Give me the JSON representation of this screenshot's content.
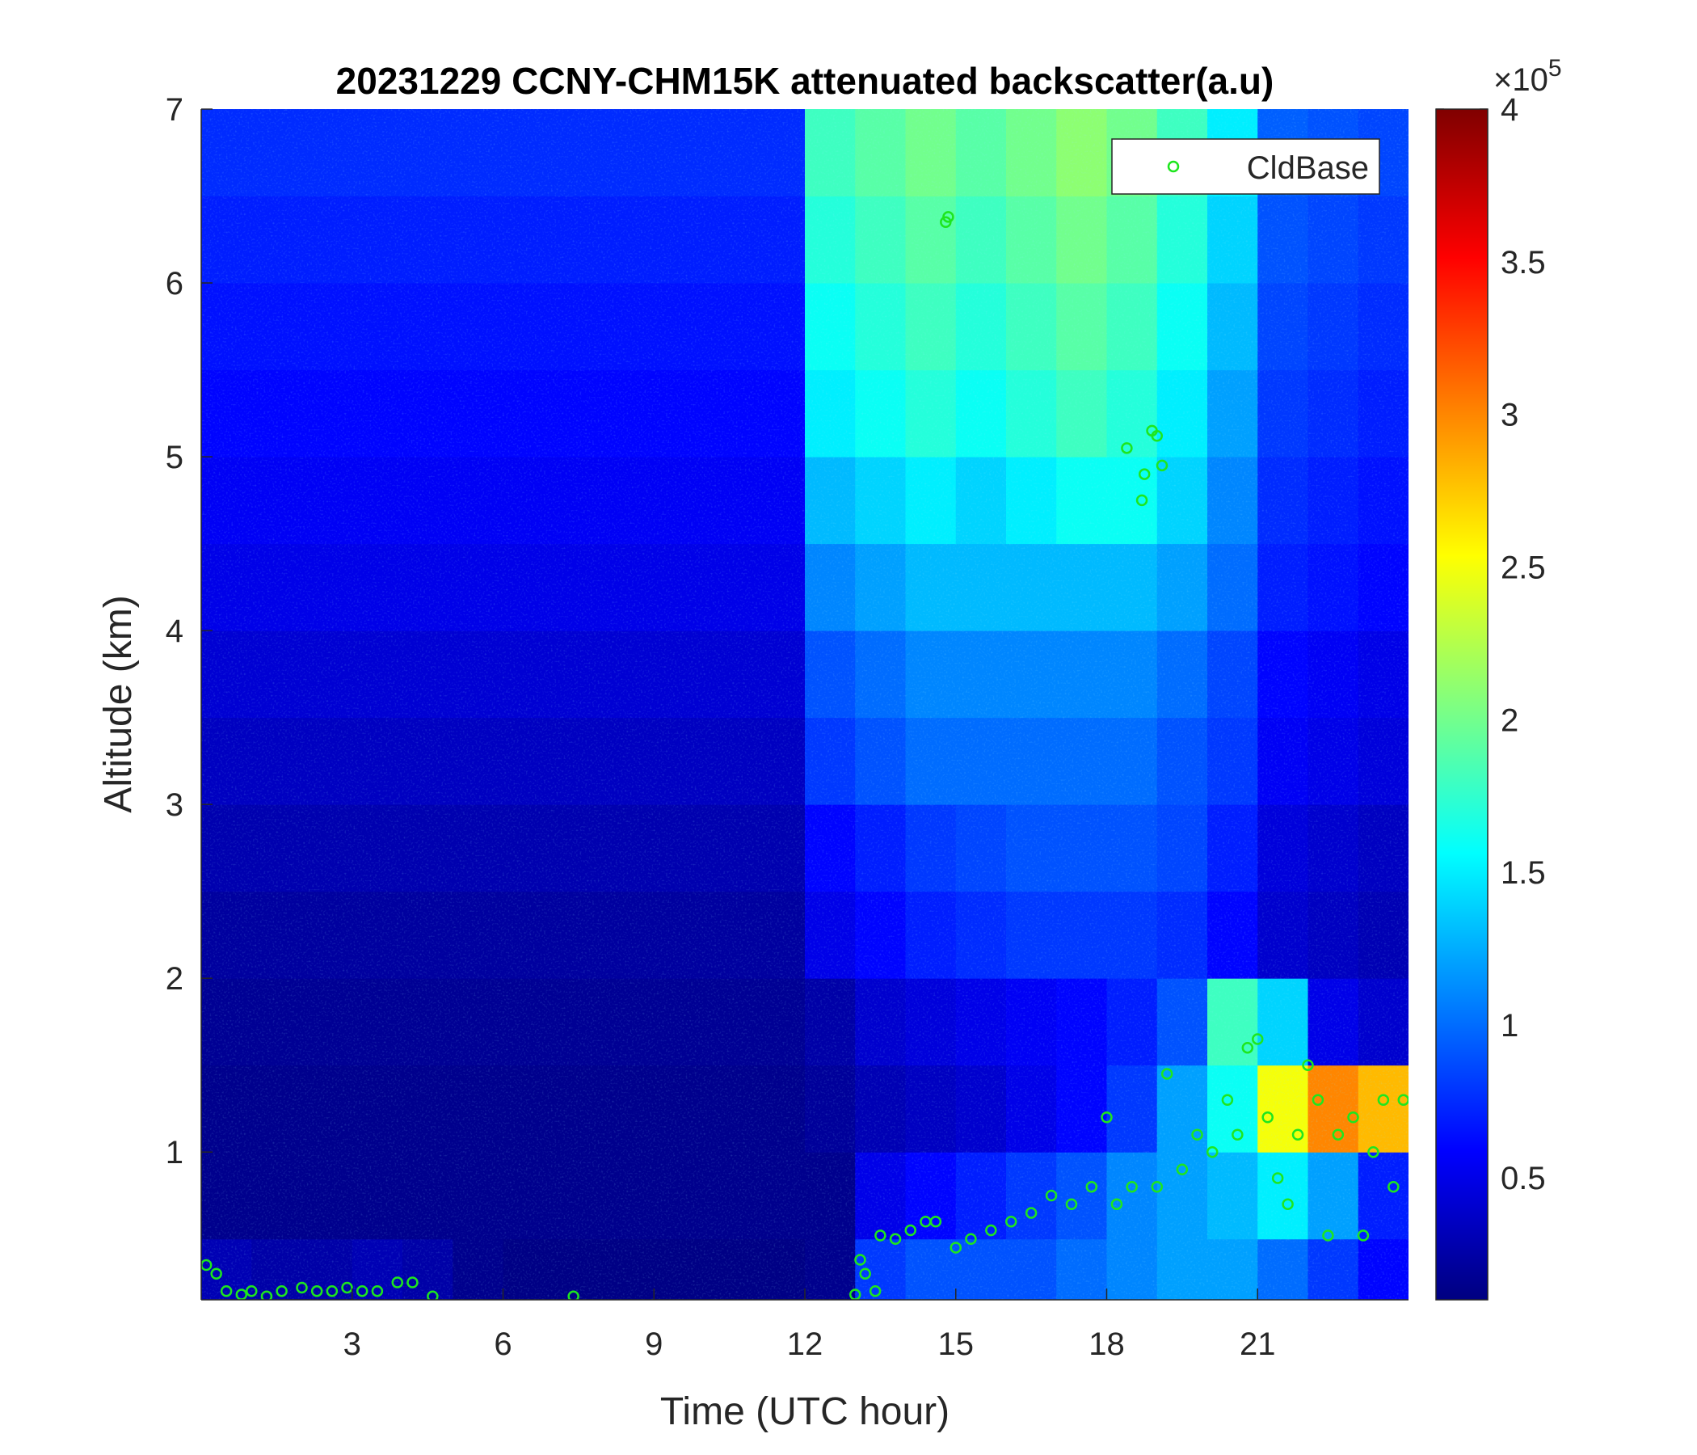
{
  "chart_data": {
    "type": "heatmap",
    "title": "20231229 CCNY-CHM15K attenuated backscatter(a.u)",
    "xlabel": "Time (UTC hour)",
    "ylabel": "Altitude (km)",
    "xlim": [
      0,
      24
    ],
    "ylim": [
      0.15,
      7
    ],
    "xticks": [
      3,
      6,
      9,
      12,
      15,
      18,
      21
    ],
    "yticks": [
      1,
      2,
      3,
      4,
      5,
      6,
      7
    ],
    "colormap": "jet",
    "clim": [
      0.1,
      4
    ],
    "cticks": [
      0.5,
      1,
      1.5,
      2,
      2.5,
      3,
      3.5,
      4
    ],
    "cbar_base": "×10",
    "cbar_exponent": "5",
    "xbins": [
      0,
      1,
      2,
      3,
      4,
      5,
      6,
      7,
      8,
      9,
      10,
      11,
      12,
      13,
      14,
      15,
      16,
      17,
      18,
      19,
      20,
      21,
      22,
      23,
      24
    ],
    "ybins": [
      0.15,
      0.5,
      1,
      1.5,
      2,
      2.5,
      3,
      3.5,
      4,
      4.5,
      5,
      5.5,
      6,
      6.5,
      7
    ],
    "z": [
      [
        0.3,
        0.25,
        0.25,
        0.3,
        0.25,
        0.15,
        0.12,
        0.12,
        0.12,
        0.12,
        0.12,
        0.12,
        0.15,
        0.8,
        0.9,
        0.9,
        0.9,
        1.0,
        1.1,
        1.2,
        1.2,
        1.0,
        0.8,
        0.6
      ],
      [
        0.15,
        0.15,
        0.15,
        0.15,
        0.15,
        0.15,
        0.15,
        0.15,
        0.15,
        0.15,
        0.15,
        0.15,
        0.15,
        0.5,
        0.6,
        0.7,
        0.8,
        0.9,
        1.1,
        1.2,
        1.3,
        1.5,
        1.2,
        0.7
      ],
      [
        0.15,
        0.15,
        0.15,
        0.15,
        0.15,
        0.15,
        0.15,
        0.15,
        0.15,
        0.15,
        0.15,
        0.15,
        0.2,
        0.3,
        0.35,
        0.4,
        0.5,
        0.6,
        0.8,
        1.2,
        1.6,
        2.5,
        3.0,
        2.8
      ],
      [
        0.18,
        0.18,
        0.18,
        0.18,
        0.18,
        0.18,
        0.18,
        0.18,
        0.18,
        0.18,
        0.18,
        0.18,
        0.25,
        0.4,
        0.45,
        0.5,
        0.55,
        0.6,
        0.7,
        0.9,
        1.8,
        1.4,
        0.5,
        0.4
      ],
      [
        0.22,
        0.22,
        0.22,
        0.22,
        0.22,
        0.22,
        0.22,
        0.22,
        0.22,
        0.22,
        0.22,
        0.22,
        0.5,
        0.6,
        0.7,
        0.75,
        0.8,
        0.8,
        0.8,
        0.75,
        0.6,
        0.4,
        0.35,
        0.3
      ],
      [
        0.28,
        0.28,
        0.28,
        0.28,
        0.28,
        0.28,
        0.28,
        0.28,
        0.28,
        0.28,
        0.28,
        0.28,
        0.6,
        0.7,
        0.8,
        0.85,
        0.9,
        0.9,
        0.9,
        0.85,
        0.7,
        0.45,
        0.4,
        0.35
      ],
      [
        0.35,
        0.35,
        0.35,
        0.35,
        0.35,
        0.35,
        0.35,
        0.35,
        0.35,
        0.35,
        0.35,
        0.35,
        0.8,
        0.9,
        1.0,
        1.0,
        1.0,
        1.0,
        1.0,
        0.9,
        0.8,
        0.55,
        0.5,
        0.45
      ],
      [
        0.42,
        0.42,
        0.42,
        0.42,
        0.42,
        0.42,
        0.42,
        0.42,
        0.42,
        0.42,
        0.42,
        0.42,
        0.9,
        1.0,
        1.1,
        1.1,
        1.1,
        1.1,
        1.1,
        1.0,
        0.85,
        0.6,
        0.55,
        0.5
      ],
      [
        0.5,
        0.5,
        0.5,
        0.5,
        0.5,
        0.5,
        0.5,
        0.5,
        0.5,
        0.5,
        0.5,
        0.5,
        1.1,
        1.2,
        1.3,
        1.3,
        1.3,
        1.3,
        1.3,
        1.2,
        1.0,
        0.7,
        0.65,
        0.6
      ],
      [
        0.55,
        0.55,
        0.55,
        0.55,
        0.55,
        0.55,
        0.55,
        0.55,
        0.55,
        0.55,
        0.55,
        0.55,
        1.3,
        1.4,
        1.5,
        1.4,
        1.5,
        1.6,
        1.6,
        1.4,
        1.1,
        0.75,
        0.7,
        0.65
      ],
      [
        0.6,
        0.6,
        0.6,
        0.6,
        0.6,
        0.6,
        0.6,
        0.6,
        0.6,
        0.6,
        0.6,
        0.6,
        1.5,
        1.6,
        1.7,
        1.6,
        1.7,
        1.8,
        1.7,
        1.5,
        1.2,
        0.8,
        0.75,
        0.7
      ],
      [
        0.65,
        0.65,
        0.65,
        0.65,
        0.65,
        0.65,
        0.65,
        0.65,
        0.65,
        0.65,
        0.65,
        0.65,
        1.6,
        1.7,
        1.8,
        1.7,
        1.8,
        1.9,
        1.8,
        1.6,
        1.3,
        0.85,
        0.8,
        0.75
      ],
      [
        0.7,
        0.7,
        0.7,
        0.7,
        0.7,
        0.7,
        0.7,
        0.7,
        0.7,
        0.7,
        0.7,
        0.7,
        1.7,
        1.8,
        1.9,
        1.8,
        1.9,
        2.0,
        1.9,
        1.7,
        1.4,
        0.9,
        0.85,
        0.8
      ],
      [
        0.75,
        0.75,
        0.75,
        0.75,
        0.75,
        0.75,
        0.75,
        0.75,
        0.75,
        0.75,
        0.75,
        0.75,
        1.8,
        1.9,
        2.0,
        1.9,
        2.0,
        2.1,
        2.0,
        1.8,
        1.5,
        0.95,
        0.9,
        0.85
      ]
    ],
    "series": [
      {
        "name": "CldBase",
        "color": "#1ee61e",
        "x": [
          0.1,
          0.3,
          0.5,
          0.8,
          1.0,
          1.3,
          1.6,
          2.0,
          2.3,
          2.6,
          2.9,
          3.2,
          3.5,
          3.9,
          4.2,
          4.6,
          7.4,
          13.0,
          13.1,
          13.2,
          13.4,
          13.5,
          13.8,
          14.1,
          14.4,
          14.6,
          14.8,
          14.85,
          15.0,
          15.3,
          15.7,
          16.1,
          16.5,
          16.9,
          17.3,
          17.7,
          18.0,
          18.2,
          18.5,
          18.4,
          18.7,
          18.75,
          18.9,
          19.0,
          19.1,
          19.0,
          19.2,
          19.5,
          19.8,
          20.1,
          20.4,
          20.6,
          20.8,
          21.0,
          21.2,
          21.4,
          21.6,
          21.8,
          22.0,
          22.2,
          22.4,
          22.6,
          22.9,
          23.1,
          23.3,
          23.5,
          23.7,
          23.9
        ],
        "values": [
          0.35,
          0.3,
          0.2,
          0.18,
          0.2,
          0.17,
          0.2,
          0.22,
          0.2,
          0.2,
          0.22,
          0.2,
          0.2,
          0.25,
          0.25,
          0.17,
          0.17,
          0.18,
          0.38,
          0.3,
          0.2,
          0.52,
          0.5,
          0.55,
          0.6,
          0.6,
          6.35,
          6.38,
          0.45,
          0.5,
          0.55,
          0.6,
          0.65,
          0.75,
          0.7,
          0.8,
          1.2,
          0.7,
          0.8,
          5.05,
          4.75,
          4.9,
          5.15,
          5.12,
          4.95,
          0.8,
          1.45,
          0.9,
          1.1,
          1.0,
          1.3,
          1.1,
          1.6,
          1.65,
          1.2,
          0.85,
          0.7,
          1.1,
          1.5,
          1.3,
          0.52,
          1.1,
          1.2,
          0.52,
          1.0,
          1.3,
          0.8,
          1.3
        ]
      }
    ],
    "legend": "northeast"
  }
}
